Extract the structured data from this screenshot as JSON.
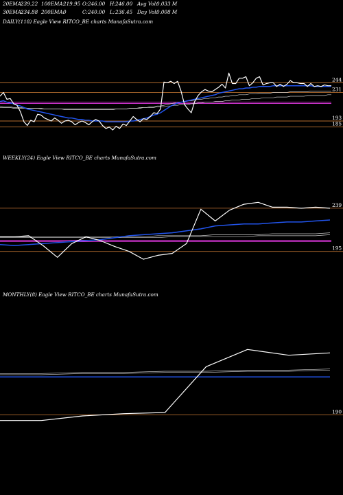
{
  "header": {
    "row1": [
      {
        "label": "20EMA:",
        "value": "239.22"
      },
      {
        "label": "100EMA:",
        "value": "219.95"
      },
      {
        "label": "O:",
        "value": "246.00"
      },
      {
        "label": "H:",
        "value": "246.00"
      },
      {
        "label": "Avg Vol:",
        "value": "0.033 M"
      }
    ],
    "row2": [
      {
        "label": "30EMA:",
        "value": "234.88"
      },
      {
        "label": "200EMA:",
        "value": "0"
      },
      {
        "label": "C:",
        "value": "240.00"
      },
      {
        "label": "L:",
        "value": "236.45"
      },
      {
        "label": "Day Vol:",
        "value": "0.008 M"
      }
    ]
  },
  "chart_data": [
    {
      "type": "line",
      "title": "DAILY(118) Eagle  View  RITCO_BE charts MunafaSutra.com",
      "levels": [
        {
          "value": "244",
          "y": 244
        },
        {
          "value": "231",
          "y": 231
        },
        {
          "value": "193",
          "y": 193
        },
        {
          "value": "185",
          "y": 185
        }
      ],
      "colors": {
        "price": "#ffffff",
        "ema_fast": "#2255ee",
        "ema_slow": "#cccccc",
        "level": "#b36b2e",
        "band": "#cc33cc"
      },
      "ylim": [
        160,
        270
      ],
      "series": [
        {
          "values": [
            226,
            231,
            222,
            223,
            216,
            214,
            205,
            192,
            187,
            194,
            192,
            202,
            201,
            197,
            195,
            193,
            197,
            194,
            190,
            193,
            194,
            192,
            188,
            191,
            193,
            191,
            188,
            192,
            195,
            193,
            187,
            183,
            185,
            181,
            186,
            183,
            189,
            187,
            193,
            199,
            195,
            192,
            196,
            195,
            199,
            204,
            203,
            209,
            245,
            244,
            246,
            243,
            246,
            233,
            215,
            209,
            204,
            219,
            227,
            232,
            235,
            233,
            232,
            235,
            238,
            242,
            237,
            257,
            243,
            243,
            250,
            250,
            252,
            240,
            244,
            250,
            252,
            241,
            243,
            244,
            244,
            239,
            242,
            239,
            242,
            247,
            244,
            244,
            243,
            243,
            239,
            243,
            239,
            240,
            239,
            241,
            240,
            240
          ]
        },
        {
          "values": [
            219,
            220,
            218,
            217,
            216,
            214,
            213,
            211,
            209,
            208,
            207,
            206,
            205,
            204,
            203,
            202,
            201,
            200,
            199,
            198,
            197,
            197,
            196,
            195,
            195,
            194,
            194,
            193,
            193,
            193,
            193,
            192,
            192,
            192,
            192,
            192,
            192,
            192,
            193,
            193,
            194,
            195,
            196,
            197,
            199,
            201,
            202,
            204,
            207,
            210,
            213,
            215,
            217,
            218,
            219,
            220,
            221,
            222,
            223,
            224,
            225,
            226,
            227,
            228,
            230,
            231,
            232,
            233,
            234,
            235,
            236,
            236,
            237,
            237,
            238,
            238,
            239,
            239,
            239,
            239,
            240,
            240,
            240,
            240,
            240,
            240,
            240,
            240,
            240,
            240,
            240,
            240,
            239,
            239,
            239,
            239,
            239,
            239
          ]
        },
        {
          "values": [
            213,
            212,
            212,
            212,
            211,
            211,
            211,
            211,
            210,
            210,
            210,
            210,
            210,
            209,
            209,
            209,
            209,
            209,
            209,
            208,
            208,
            208,
            208,
            208,
            208,
            208,
            208,
            208,
            208,
            208,
            208,
            208,
            208,
            208,
            209,
            209,
            209,
            209,
            210,
            210,
            210,
            211,
            211,
            211,
            212,
            212,
            213,
            213,
            214,
            215,
            216,
            217,
            217,
            218,
            219,
            220,
            220,
            221,
            222,
            222,
            223,
            223,
            224,
            224,
            225,
            225,
            226,
            226,
            227,
            227,
            228,
            228,
            228,
            229,
            229,
            229,
            230,
            230,
            230,
            230,
            231,
            231,
            231,
            231,
            231,
            232,
            232,
            232,
            232,
            232,
            232,
            233,
            233,
            233,
            233,
            233,
            233,
            233
          ]
        },
        {
          "values": [
            211,
            211,
            211,
            211,
            210,
            210,
            210,
            210,
            210,
            210,
            210,
            210,
            209,
            209,
            209,
            209,
            209,
            209,
            209,
            209,
            209,
            209,
            209,
            209,
            209,
            209,
            209,
            209,
            209,
            209,
            209,
            209,
            209,
            209,
            209,
            209,
            209,
            209,
            210,
            210,
            210,
            210,
            211,
            211,
            211,
            211,
            212,
            212,
            212,
            213,
            213,
            214,
            214,
            215,
            215,
            215,
            216,
            216,
            217,
            217,
            218,
            218,
            218,
            219,
            219,
            219,
            220,
            220,
            221,
            221,
            221,
            222,
            222,
            222,
            223,
            223,
            223,
            224,
            224,
            224,
            224,
            225,
            225,
            225,
            225,
            226,
            226,
            226,
            226,
            226,
            227,
            227,
            227,
            227,
            227,
            227,
            228,
            228
          ]
        }
      ]
    },
    {
      "type": "line",
      "title": "WEEKLY(24) Eagle  View  RITCO_BE charts MunafaSutra.com",
      "levels": [
        {
          "value": "239",
          "y": 239
        },
        {
          "value": "195",
          "y": 195
        }
      ],
      "colors": {
        "price": "#ffffff",
        "ema_fast": "#2255ee",
        "ema_slow": "#cccccc",
        "level": "#b36b2e",
        "band": "#cc33cc"
      },
      "ylim": [
        178,
        255
      ],
      "series": [
        {
          "values": [
            210,
            210,
            211,
            201,
            189,
            203,
            210,
            206,
            200,
            195,
            187,
            191,
            193,
            203,
            238,
            226,
            237,
            243,
            245,
            240,
            240,
            239,
            240,
            239
          ]
        },
        {
          "values": [
            202,
            201,
            202,
            203,
            204,
            205,
            206,
            207,
            209,
            211,
            212,
            213,
            214,
            216,
            218,
            221,
            222,
            223,
            223,
            224,
            225,
            225,
            226,
            227
          ]
        },
        {
          "values": [
            210,
            210,
            210,
            210,
            210,
            210,
            210,
            210,
            210,
            210,
            210,
            211,
            211,
            211,
            211,
            212,
            212,
            212,
            212,
            213,
            213,
            213,
            213,
            214
          ]
        },
        {
          "values": [
            209,
            209,
            209,
            209,
            209,
            209,
            209,
            209,
            209,
            209,
            209,
            209,
            210,
            210,
            210,
            210,
            210,
            210,
            211,
            211,
            211,
            211,
            211,
            212
          ]
        }
      ]
    },
    {
      "type": "line",
      "title": "MONTHLY(8) Eagle  View  RITCO_BE charts MunafaSutra.com",
      "levels": [
        {
          "value": "190",
          "y": 190
        }
      ],
      "colors": {
        "price": "#ffffff",
        "ema_fast": "#2255ee",
        "ema_slow": "#cccccc",
        "level": "#b36b2e"
      },
      "ylim": [
        180,
        270
      ],
      "series": [
        {
          "values": [
            185,
            185,
            189,
            191,
            192,
            232,
            247,
            242,
            244
          ]
        },
        {
          "values": [
            223,
            223,
            223,
            223,
            223,
            223,
            223,
            223,
            223
          ]
        },
        {
          "values": [
            225,
            225,
            226,
            226,
            227,
            227,
            228,
            228,
            229
          ]
        },
        {
          "values": [
            226,
            226,
            227,
            227,
            228,
            228,
            229,
            229,
            230
          ]
        }
      ]
    }
  ]
}
